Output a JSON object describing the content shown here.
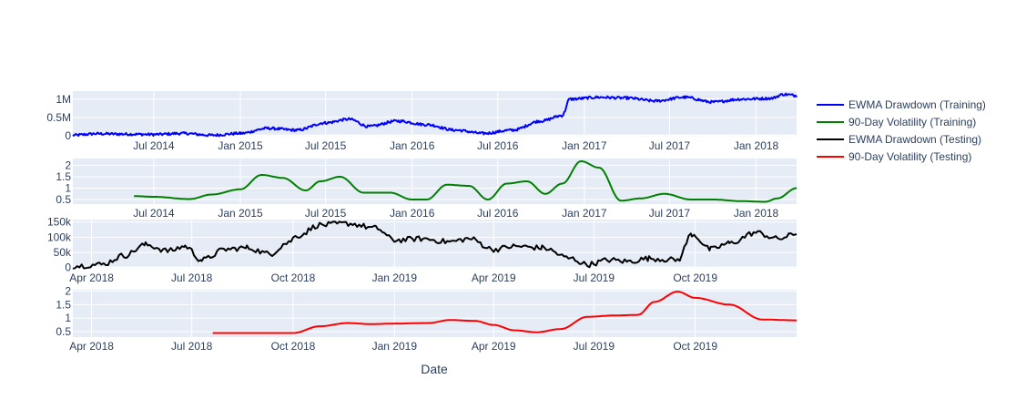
{
  "chart_data": {
    "type": "line",
    "xlabel": "Date",
    "grid": true,
    "legend_placement": "right",
    "colors": {
      "plot_bg": "#e5ecf6",
      "grid": "#ffffff",
      "text": "#2a3f5f"
    },
    "series": [
      {
        "name": "EWMA Drawdown (Training)",
        "color": "#0000ff"
      },
      {
        "name": "90-Day Volatility (Training)",
        "color": "#008000"
      },
      {
        "name": "EWMA Drawdown (Testing)",
        "color": "#000000"
      },
      {
        "name": "90-Day Volatility (Testing)",
        "color": "#ff0000"
      }
    ],
    "panels": [
      {
        "series_index": 0,
        "xlim": [
          "2014-01-10",
          "2018-03-28"
        ],
        "xticks": [
          {
            "date": "2014-07-01",
            "label": "Jul 2014"
          },
          {
            "date": "2015-01-01",
            "label": "Jan 2015"
          },
          {
            "date": "2015-07-01",
            "label": "Jul 2015"
          },
          {
            "date": "2016-01-01",
            "label": "Jan 2016"
          },
          {
            "date": "2016-07-01",
            "label": "Jul 2016"
          },
          {
            "date": "2017-01-01",
            "label": "Jan 2017"
          },
          {
            "date": "2017-07-01",
            "label": "Jul 2017"
          },
          {
            "date": "2018-01-01",
            "label": "Jan 2018"
          }
        ],
        "ylim": [
          -30000,
          1220000
        ],
        "yticks": [
          {
            "value": 0,
            "label": "0"
          },
          {
            "value": 500000,
            "label": "0.5M"
          },
          {
            "value": 1000000,
            "label": "1M"
          }
        ],
        "noise": 35000,
        "points": [
          [
            "2014-01-10",
            10000
          ],
          [
            "2014-03-01",
            50000
          ],
          [
            "2014-05-01",
            40000
          ],
          [
            "2014-07-01",
            30000
          ],
          [
            "2014-09-01",
            60000
          ],
          [
            "2014-11-01",
            10000
          ],
          [
            "2015-01-01",
            60000
          ],
          [
            "2015-03-01",
            200000
          ],
          [
            "2015-05-01",
            150000
          ],
          [
            "2015-07-01",
            350000
          ],
          [
            "2015-08-20",
            450000
          ],
          [
            "2015-10-01",
            250000
          ],
          [
            "2015-12-01",
            400000
          ],
          [
            "2016-02-01",
            300000
          ],
          [
            "2016-04-01",
            150000
          ],
          [
            "2016-06-01",
            60000
          ],
          [
            "2016-08-01",
            150000
          ],
          [
            "2016-10-01",
            400000
          ],
          [
            "2016-11-15",
            550000
          ],
          [
            "2016-12-01",
            1000000
          ],
          [
            "2017-02-01",
            1050000
          ],
          [
            "2017-04-01",
            1030000
          ],
          [
            "2017-06-01",
            950000
          ],
          [
            "2017-08-01",
            1050000
          ],
          [
            "2017-10-01",
            920000
          ],
          [
            "2017-12-01",
            1000000
          ],
          [
            "2018-02-01",
            1020000
          ],
          [
            "2018-03-01",
            1130000
          ],
          [
            "2018-03-28",
            1100000
          ]
        ]
      },
      {
        "series_index": 1,
        "xlim": [
          "2014-01-10",
          "2018-03-28"
        ],
        "xticks": [
          {
            "date": "2014-07-01",
            "label": "Jul 2014"
          },
          {
            "date": "2015-01-01",
            "label": "Jan 2015"
          },
          {
            "date": "2015-07-01",
            "label": "Jul 2015"
          },
          {
            "date": "2016-01-01",
            "label": "Jan 2016"
          },
          {
            "date": "2016-07-01",
            "label": "Jul 2016"
          },
          {
            "date": "2017-01-01",
            "label": "Jan 2017"
          },
          {
            "date": "2017-07-01",
            "label": "Jul 2017"
          },
          {
            "date": "2018-01-01",
            "label": "Jan 2018"
          }
        ],
        "ylim": [
          0.3,
          2.3
        ],
        "yticks": [
          {
            "value": 0.5,
            "label": "0.5"
          },
          {
            "value": 1,
            "label": "1"
          },
          {
            "value": 1.5,
            "label": "1.5"
          },
          {
            "value": 2,
            "label": "2"
          }
        ],
        "noise": 0,
        "points": [
          [
            "2014-05-20",
            0.65
          ],
          [
            "2014-07-01",
            0.62
          ],
          [
            "2014-09-15",
            0.52
          ],
          [
            "2014-11-01",
            0.72
          ],
          [
            "2015-01-01",
            0.95
          ],
          [
            "2015-02-15",
            1.58
          ],
          [
            "2015-04-01",
            1.45
          ],
          [
            "2015-05-20",
            0.9
          ],
          [
            "2015-06-20",
            1.3
          ],
          [
            "2015-08-01",
            1.5
          ],
          [
            "2015-09-20",
            0.8
          ],
          [
            "2015-11-15",
            0.8
          ],
          [
            "2016-01-01",
            0.5
          ],
          [
            "2016-02-01",
            0.5
          ],
          [
            "2016-03-15",
            1.15
          ],
          [
            "2016-05-01",
            1.1
          ],
          [
            "2016-06-10",
            0.5
          ],
          [
            "2016-07-20",
            1.2
          ],
          [
            "2016-09-01",
            1.3
          ],
          [
            "2016-10-10",
            0.75
          ],
          [
            "2016-11-15",
            1.2
          ],
          [
            "2016-12-25",
            2.18
          ],
          [
            "2017-02-01",
            1.9
          ],
          [
            "2017-03-20",
            0.45
          ],
          [
            "2017-05-01",
            0.55
          ],
          [
            "2017-06-20",
            0.75
          ],
          [
            "2017-08-15",
            0.5
          ],
          [
            "2017-10-01",
            0.5
          ],
          [
            "2017-12-01",
            0.43
          ],
          [
            "2018-01-20",
            0.4
          ],
          [
            "2018-02-15",
            0.55
          ],
          [
            "2018-03-28",
            1.0
          ]
        ]
      },
      {
        "series_index": 2,
        "xlim": [
          "2018-03-15",
          "2020-01-01"
        ],
        "xticks": [
          {
            "date": "2018-04-01",
            "label": "Apr 2018"
          },
          {
            "date": "2018-07-01",
            "label": "Jul 2018"
          },
          {
            "date": "2018-10-01",
            "label": "Oct 2018"
          },
          {
            "date": "2019-01-01",
            "label": "Jan 2019"
          },
          {
            "date": "2019-04-01",
            "label": "Apr 2019"
          },
          {
            "date": "2019-07-01",
            "label": "Jul 2019"
          },
          {
            "date": "2019-10-01",
            "label": "Oct 2019"
          }
        ],
        "ylim": [
          -4000,
          158000
        ],
        "yticks": [
          {
            "value": 0,
            "label": "0"
          },
          {
            "value": 50000,
            "label": "50k"
          },
          {
            "value": 100000,
            "label": "100k"
          },
          {
            "value": 150000,
            "label": "150k"
          }
        ],
        "noise": 9000,
        "points": [
          [
            "2018-03-15",
            5000
          ],
          [
            "2018-04-10",
            10000
          ],
          [
            "2018-05-01",
            40000
          ],
          [
            "2018-05-20",
            75000
          ],
          [
            "2018-06-10",
            55000
          ],
          [
            "2018-06-25",
            70000
          ],
          [
            "2018-07-10",
            25000
          ],
          [
            "2018-08-01",
            60000
          ],
          [
            "2018-08-20",
            65000
          ],
          [
            "2018-09-10",
            45000
          ],
          [
            "2018-09-25",
            80000
          ],
          [
            "2018-10-05",
            105000
          ],
          [
            "2018-10-25",
            140000
          ],
          [
            "2018-11-20",
            145000
          ],
          [
            "2018-12-15",
            130000
          ],
          [
            "2019-01-01",
            90000
          ],
          [
            "2019-01-25",
            95000
          ],
          [
            "2019-02-20",
            85000
          ],
          [
            "2019-03-10",
            95000
          ],
          [
            "2019-04-01",
            60000
          ],
          [
            "2019-04-20",
            70000
          ],
          [
            "2019-05-15",
            65000
          ],
          [
            "2019-06-10",
            30000
          ],
          [
            "2019-06-25",
            10000
          ],
          [
            "2019-07-15",
            25000
          ],
          [
            "2019-08-01",
            20000
          ],
          [
            "2019-08-20",
            30000
          ],
          [
            "2019-09-15",
            25000
          ],
          [
            "2019-09-28",
            110000
          ],
          [
            "2019-10-15",
            60000
          ],
          [
            "2019-11-01",
            80000
          ],
          [
            "2019-11-25",
            115000
          ],
          [
            "2019-12-15",
            95000
          ],
          [
            "2020-01-01",
            110000
          ]
        ]
      },
      {
        "series_index": 3,
        "xlim": [
          "2018-03-15",
          "2020-01-01"
        ],
        "xticks": [
          {
            "date": "2018-04-01",
            "label": "Apr 2018"
          },
          {
            "date": "2018-07-01",
            "label": "Jul 2018"
          },
          {
            "date": "2018-10-01",
            "label": "Oct 2018"
          },
          {
            "date": "2019-01-01",
            "label": "Jan 2019"
          },
          {
            "date": "2019-04-01",
            "label": "Apr 2019"
          },
          {
            "date": "2019-07-01",
            "label": "Jul 2019"
          },
          {
            "date": "2019-10-01",
            "label": "Oct 2019"
          }
        ],
        "ylim": [
          0.3,
          2.05
        ],
        "yticks": [
          {
            "value": 0.5,
            "label": "0.5"
          },
          {
            "value": 1,
            "label": "1"
          },
          {
            "value": 1.5,
            "label": "1.5"
          },
          {
            "value": 2,
            "label": "2"
          }
        ],
        "noise": 0,
        "points": [
          [
            "2018-07-20",
            0.45
          ],
          [
            "2018-09-01",
            0.45
          ],
          [
            "2018-10-01",
            0.45
          ],
          [
            "2018-10-25",
            0.7
          ],
          [
            "2018-11-20",
            0.82
          ],
          [
            "2018-12-10",
            0.78
          ],
          [
            "2019-01-01",
            0.8
          ],
          [
            "2019-02-01",
            0.82
          ],
          [
            "2019-02-20",
            0.93
          ],
          [
            "2019-03-15",
            0.9
          ],
          [
            "2019-04-01",
            0.75
          ],
          [
            "2019-04-20",
            0.55
          ],
          [
            "2019-05-10",
            0.48
          ],
          [
            "2019-06-01",
            0.6
          ],
          [
            "2019-06-25",
            1.05
          ],
          [
            "2019-07-20",
            1.1
          ],
          [
            "2019-08-10",
            1.12
          ],
          [
            "2019-08-25",
            1.6
          ],
          [
            "2019-09-15",
            1.98
          ],
          [
            "2019-10-01",
            1.75
          ],
          [
            "2019-11-01",
            1.5
          ],
          [
            "2019-12-01",
            0.95
          ],
          [
            "2020-01-01",
            0.92
          ]
        ]
      }
    ]
  }
}
